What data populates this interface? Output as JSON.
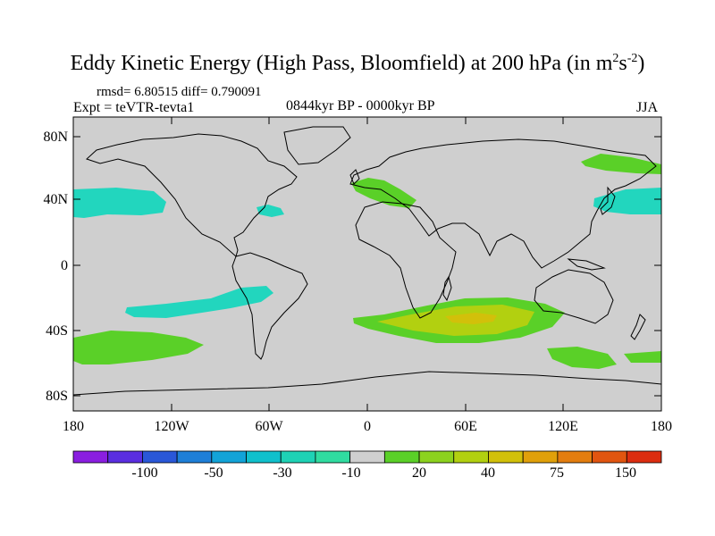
{
  "figure": {
    "title_main": "Eddy Kinetic Energy (High Pass, Bloomfield) at 200 hPa (in m",
    "title_sup1": "2",
    "title_mid": "s",
    "title_sup2": "-2",
    "title_end": ")",
    "stats": "rmsd= 6.80515 diff= 0.790091",
    "experiment": "Expt = teVTR-tevta1",
    "period": "0844kyr BP - 0000kyr BP",
    "season": "JJA"
  },
  "map": {
    "lat_labels": [
      "80N",
      "40N",
      "0",
      "40S",
      "80S"
    ],
    "lon_labels": [
      "180",
      "120W",
      "60W",
      "0",
      "60E",
      "120E",
      "180"
    ]
  },
  "colorbar": {
    "labels": [
      "-100",
      "-50",
      "-30",
      "-10",
      "20",
      "40",
      "75",
      "150"
    ],
    "colors": [
      "#8a1ee0",
      "#5a2ee0",
      "#2a57d8",
      "#1e7fd8",
      "#12a3d8",
      "#10c0cc",
      "#1ed2b5",
      "#30dca0",
      "#cfcfcf",
      "#5ad028",
      "#8cd21e",
      "#b2d010",
      "#d2c00a",
      "#e0a00a",
      "#e37d0f",
      "#e15510",
      "#dc2d10"
    ]
  },
  "colors": {
    "land_ocean_background": "#cfcfcf",
    "cyan_negative": "#22d6be",
    "green_positive": "#5ad028",
    "yellowgreen": "#b2d010",
    "yellow": "#d2c00a"
  }
}
